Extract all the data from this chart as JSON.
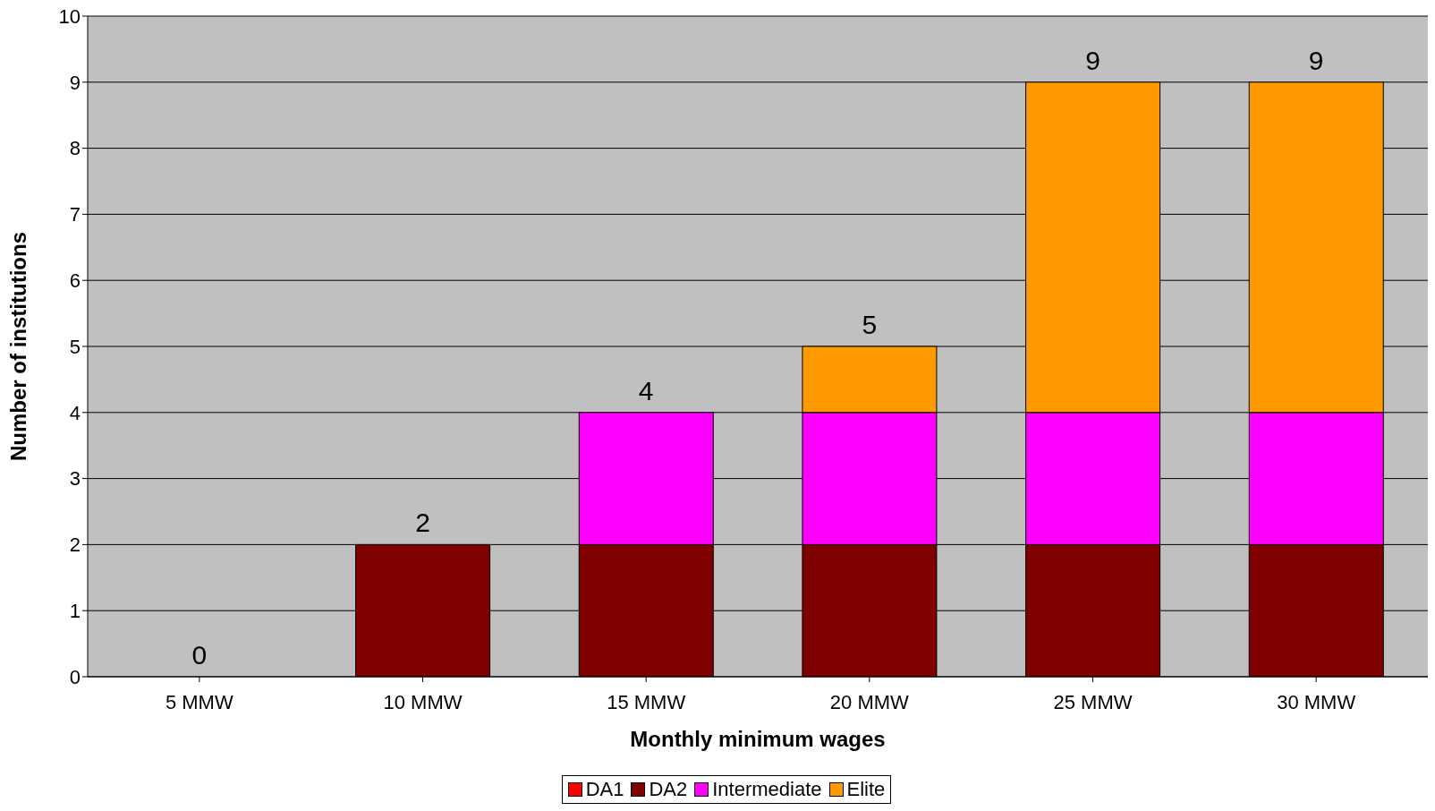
{
  "chart_data": {
    "type": "bar",
    "stacked": true,
    "xlabel": "Monthly minimum wages",
    "ylabel": "Number of institutions",
    "categories": [
      "5 MMW",
      "10 MMW",
      "15 MMW",
      "20 MMW",
      "25 MMW",
      "30 MMW"
    ],
    "series": [
      {
        "name": "DA1",
        "color": "#ff0000",
        "values": [
          0,
          0,
          0,
          0,
          0,
          0
        ]
      },
      {
        "name": "DA2",
        "color": "#800000",
        "values": [
          0,
          2,
          2,
          2,
          2,
          2
        ]
      },
      {
        "name": "Intermediate",
        "color": "#ff00ff",
        "values": [
          0,
          0,
          2,
          2,
          2,
          2
        ]
      },
      {
        "name": "Elite",
        "color": "#ff9900",
        "values": [
          0,
          0,
          0,
          1,
          5,
          5
        ]
      }
    ],
    "totals": [
      "0",
      "2",
      "4",
      "5",
      "9",
      "9"
    ],
    "ylim": [
      0,
      10
    ],
    "yticks": [
      0,
      1,
      2,
      3,
      4,
      5,
      6,
      7,
      8,
      9,
      10
    ],
    "grid": "y",
    "legend": "bottom"
  }
}
